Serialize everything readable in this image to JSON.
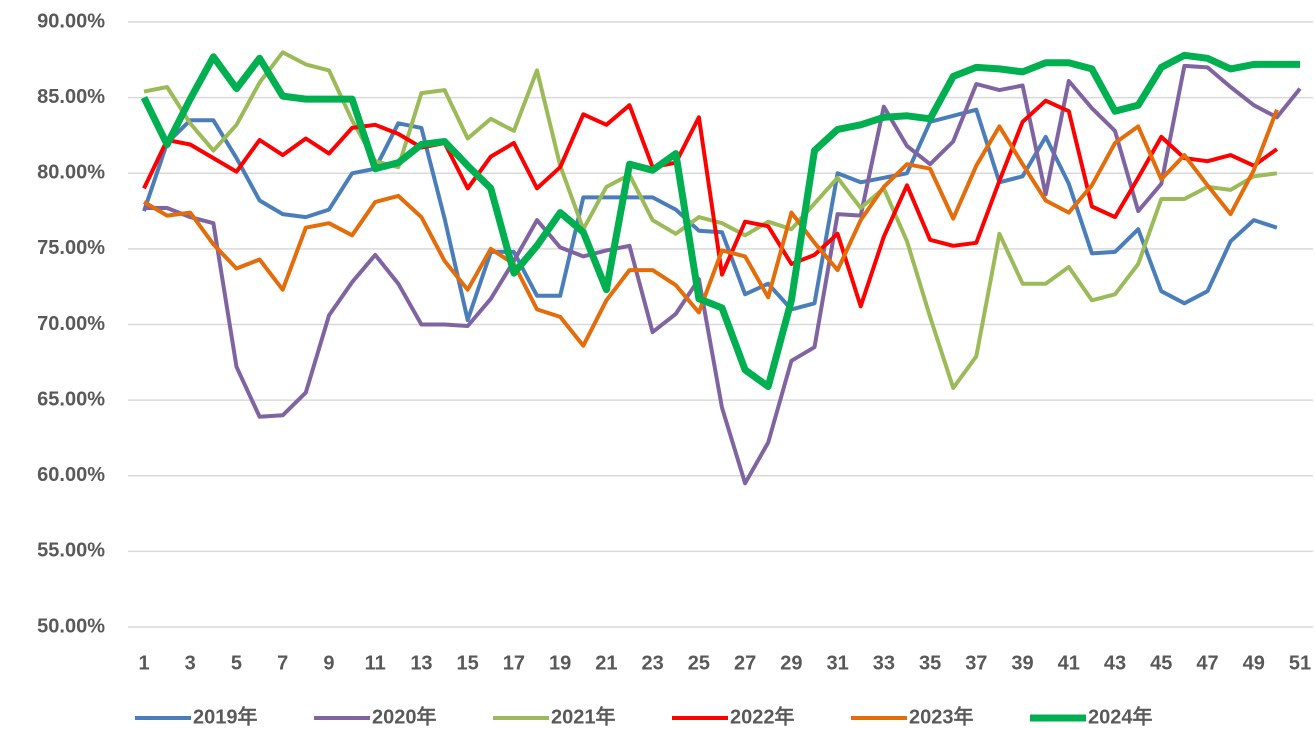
{
  "chart_data": {
    "type": "line",
    "categories": [
      "1",
      null,
      "3",
      null,
      "5",
      null,
      "7",
      null,
      "9",
      null,
      "11",
      null,
      "13",
      null,
      "15",
      null,
      "17",
      null,
      "19",
      null,
      "21",
      null,
      "23",
      null,
      "25",
      null,
      "27",
      null,
      "29",
      null,
      "31",
      null,
      "33",
      null,
      "35",
      null,
      "37",
      null,
      "39",
      null,
      "41",
      null,
      "43",
      null,
      "45",
      null,
      "47",
      null,
      "49",
      null,
      "51"
    ],
    "ylim": [
      50,
      90
    ],
    "yticks": [
      {
        "value": 50,
        "label": "50.00%"
      },
      {
        "value": 55,
        "label": "55.00%"
      },
      {
        "value": 60,
        "label": "60.00%"
      },
      {
        "value": 65,
        "label": "65.00%"
      },
      {
        "value": 70,
        "label": "70.00%"
      },
      {
        "value": 75,
        "label": "75.00%"
      },
      {
        "value": 80,
        "label": "80.00%"
      },
      {
        "value": 85,
        "label": "85.00%"
      },
      {
        "value": 90,
        "label": "90.00%"
      }
    ],
    "grid": true,
    "legend": "bottom",
    "series": [
      {
        "name": "2019年",
        "color": "#4a7ebb",
        "width": 4,
        "values": [
          77.5,
          82,
          83.5,
          83.5,
          81,
          78.2,
          77.3,
          77.1,
          77.6,
          80,
          80.3,
          83.3,
          83,
          77,
          70.3,
          74.8,
          74.8,
          71.9,
          71.9,
          78.4,
          78.4,
          78.4,
          78.4,
          77.6,
          76.2,
          76.1,
          72,
          72.7,
          71,
          71.4,
          80,
          79.4,
          79.7,
          80,
          83.4,
          83.8,
          84.2,
          79.4,
          79.8,
          82.4,
          79.3,
          74.7,
          74.8,
          76.3,
          72.2,
          71.4,
          72.2,
          75.5,
          76.9,
          76.4,
          null
        ]
      },
      {
        "name": "2020年",
        "color": "#8064a2",
        "width": 4,
        "values": [
          77.7,
          77.7,
          77.1,
          76.7,
          67.2,
          63.9,
          64,
          65.5,
          70.6,
          72.8,
          74.6,
          72.7,
          70,
          70,
          69.9,
          71.7,
          74.2,
          76.9,
          75.1,
          74.5,
          74.9,
          75.2,
          69.5,
          70.7,
          73,
          64.5,
          59.5,
          62.2,
          67.6,
          68.5,
          77.3,
          77.2,
          84.4,
          81.8,
          80.6,
          82.1,
          85.9,
          85.5,
          85.8,
          78.6,
          86.1,
          84.3,
          82.8,
          77.5,
          79.3,
          87.1,
          87,
          85.7,
          84.5,
          83.7,
          85.6
        ]
      },
      {
        "name": "2021年",
        "color": "#9bbb59",
        "width": 4,
        "values": [
          85.4,
          85.7,
          83.3,
          81.5,
          83.2,
          86,
          88,
          87.2,
          86.8,
          83.5,
          80.8,
          80.4,
          85.3,
          85.5,
          82.3,
          83.6,
          82.8,
          86.8,
          80.5,
          76.3,
          79.1,
          79.9,
          76.9,
          76,
          77.1,
          76.7,
          75.9,
          76.8,
          76.3,
          78,
          79.7,
          77.7,
          79,
          75.5,
          70.5,
          65.8,
          67.9,
          76,
          72.7,
          72.7,
          73.8,
          71.6,
          72,
          74,
          78.3,
          78.3,
          79.1,
          78.9,
          79.8,
          80,
          null
        ]
      },
      {
        "name": "2022年",
        "color": "#ff0000",
        "width": 4,
        "values": [
          79,
          82.2,
          81.9,
          81,
          80.1,
          82.2,
          81.2,
          82.3,
          81.3,
          83,
          83.2,
          82.6,
          81.7,
          82,
          79,
          81.1,
          82,
          79,
          80.4,
          83.9,
          83.2,
          84.5,
          80.4,
          80.7,
          83.7,
          73.3,
          76.8,
          76.5,
          74,
          74.6,
          76,
          71.2,
          75.8,
          79.2,
          75.6,
          75.2,
          75.4,
          79.5,
          83.4,
          84.8,
          84.1,
          77.8,
          77.1,
          79.7,
          82.4,
          81,
          80.8,
          81.2,
          80.5,
          81.6,
          null
        ]
      },
      {
        "name": "2023年",
        "color": "#e46c0a",
        "width": 4,
        "values": [
          78.1,
          77.2,
          77.4,
          75.3,
          73.7,
          74.3,
          72.3,
          76.4,
          76.7,
          75.9,
          78.1,
          78.5,
          77.1,
          74.2,
          72.3,
          75,
          74,
          71,
          70.5,
          68.6,
          71.6,
          73.6,
          73.6,
          72.6,
          70.8,
          74.9,
          74.5,
          71.8,
          77.4,
          75.4,
          73.6,
          76.9,
          79.1,
          80.6,
          80.3,
          77,
          80.5,
          83.1,
          80.6,
          78.2,
          77.4,
          79.2,
          82,
          83.1,
          79.6,
          81.2,
          79.2,
          77.3,
          80.2,
          84.2,
          null
        ]
      },
      {
        "name": "2024年",
        "color": "#00b050",
        "width": 7,
        "values": [
          85,
          81.9,
          84.9,
          87.7,
          85.6,
          87.6,
          85.1,
          84.9,
          84.9,
          84.9,
          80.3,
          80.7,
          81.9,
          82.1,
          80.5,
          79,
          73.4,
          75.2,
          77.4,
          76.1,
          72.3,
          80.6,
          80.2,
          81.3,
          71.7,
          71.1,
          67,
          65.9,
          71.6,
          81.5,
          82.9,
          83.2,
          83.7,
          83.8,
          83.6,
          86.4,
          87,
          86.9,
          86.7,
          87.3,
          87.3,
          86.9,
          84.1,
          84.5,
          87,
          87.8,
          87.6,
          86.9,
          87.2,
          87.2,
          87.2
        ]
      }
    ]
  }
}
